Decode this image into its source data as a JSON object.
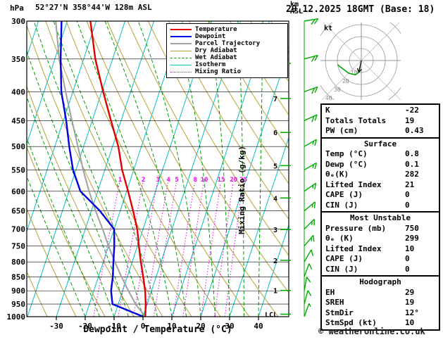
{
  "header": {
    "station": "52°27'N 358°44'W 128m ASL",
    "datetime": "29.12.2025 18GMT (Base: 18)"
  },
  "labels": {
    "hpa": "hPa",
    "km": "km",
    "asl": "ASL",
    "x_axis": "Dewpoint / Temperature (°C)",
    "mixing_ratio_axis": "Mixing Ratio (g/kg)",
    "lcl": "LCL"
  },
  "axes": {
    "pressure_ticks": [
      300,
      350,
      400,
      450,
      500,
      550,
      600,
      650,
      700,
      750,
      800,
      850,
      900,
      950,
      1000
    ],
    "temp_ticks": [
      -30,
      -20,
      -10,
      0,
      10,
      20,
      30,
      40
    ],
    "km_ticks": [
      1,
      2,
      3,
      4,
      5,
      6,
      7,
      8
    ],
    "km_tick_pressures": [
      898.7,
      795.0,
      701.2,
      616.6,
      540.5,
      472.2,
      411.1,
      356.5
    ],
    "mixing_ratio_values": [
      1,
      2,
      3,
      4,
      5,
      8,
      10,
      15,
      20,
      25
    ]
  },
  "colors": {
    "temperature": "#e00000",
    "dewpoint": "#0000e0",
    "parcel": "#a0a0a0",
    "dry_adiabat": "#b8a139",
    "wet_adiabat": "#00a000",
    "isotherm": "#00c0c0",
    "mixing_ratio": "#f000f0",
    "wind_barbs": "#00a800",
    "km_ticks": "#00a800"
  },
  "legend": [
    {
      "label": "Temperature",
      "color_key": "temperature",
      "style": "solid",
      "thick": true
    },
    {
      "label": "Dewpoint",
      "color_key": "dewpoint",
      "style": "solid",
      "thick": true
    },
    {
      "label": "Parcel Trajectory",
      "color_key": "parcel",
      "style": "solid",
      "thick": true
    },
    {
      "label": "Dry Adiabat",
      "color_key": "dry_adiabat",
      "style": "solid",
      "thick": false
    },
    {
      "label": "Wet Adiabat",
      "color_key": "wet_adiabat",
      "style": "dashed",
      "thick": false
    },
    {
      "label": "Isotherm",
      "color_key": "isotherm",
      "style": "solid",
      "thick": false
    },
    {
      "label": "Mixing Ratio",
      "color_key": "mixing_ratio",
      "style": "dotted",
      "thick": false
    }
  ],
  "chart_data": {
    "type": "skewt-log-p",
    "pressure_axis": {
      "min": 300,
      "max": 1000,
      "scale": "log",
      "unit": "hPa"
    },
    "temp_axis": {
      "min": -30,
      "max": 40,
      "unit": "°C"
    },
    "background": {
      "isotherm_C": {
        "min": -80,
        "max": 40,
        "step": 10
      },
      "dry_adiabat_K": {
        "min": 240,
        "max": 420,
        "step": 10
      },
      "wet_adiabat_C": {
        "min": -20,
        "max": 40,
        "step": 5
      },
      "mixing_ratio_top_hpa": 580
    },
    "sounding": {
      "pressure_hpa": [
        1000,
        950,
        900,
        850,
        800,
        750,
        700,
        650,
        600,
        550,
        500,
        450,
        400,
        350,
        300
      ],
      "temperature_c": [
        0.8,
        -0.5,
        -2.2,
        -4.5,
        -7,
        -9.5,
        -12,
        -15.5,
        -19.5,
        -24,
        -28,
        -33.5,
        -39.5,
        -46,
        -52
      ],
      "dewpoint_c": [
        0.1,
        -12,
        -14,
        -15,
        -16.5,
        -18,
        -20,
        -27,
        -36,
        -41,
        -45,
        -49,
        -54,
        -58,
        -62
      ],
      "parcel_c": [
        0.8,
        -4,
        -8,
        -12,
        -16,
        -20,
        -24,
        -28.5,
        -33,
        -37.5,
        -42,
        -47,
        -52.5,
        -58.5,
        -64
      ]
    },
    "lcl_pressure_hpa": 990,
    "wind_barbs": [
      {
        "pressure_hpa": 1000,
        "dir_deg": 20,
        "speed_kt": 5
      },
      {
        "pressure_hpa": 950,
        "dir_deg": 15,
        "speed_kt": 10
      },
      {
        "pressure_hpa": 900,
        "dir_deg": 10,
        "speed_kt": 10
      },
      {
        "pressure_hpa": 850,
        "dir_deg": 20,
        "speed_kt": 10
      },
      {
        "pressure_hpa": 800,
        "dir_deg": 30,
        "speed_kt": 10
      },
      {
        "pressure_hpa": 750,
        "dir_deg": 40,
        "speed_kt": 15
      },
      {
        "pressure_hpa": 700,
        "dir_deg": 45,
        "speed_kt": 15
      },
      {
        "pressure_hpa": 650,
        "dir_deg": 50,
        "speed_kt": 15
      },
      {
        "pressure_hpa": 600,
        "dir_deg": 55,
        "speed_kt": 15
      },
      {
        "pressure_hpa": 550,
        "dir_deg": 60,
        "speed_kt": 15
      },
      {
        "pressure_hpa": 500,
        "dir_deg": 60,
        "speed_kt": 15
      },
      {
        "pressure_hpa": 450,
        "dir_deg": 65,
        "speed_kt": 20
      },
      {
        "pressure_hpa": 400,
        "dir_deg": 70,
        "speed_kt": 20
      },
      {
        "pressure_hpa": 350,
        "dir_deg": 75,
        "speed_kt": 20
      },
      {
        "pressure_hpa": 300,
        "dir_deg": 80,
        "speed_kt": 20
      }
    ]
  },
  "hodograph": {
    "unit_label": "kt",
    "ring_step_kt": 10,
    "ring_labels": [
      10,
      20,
      30,
      40
    ],
    "trace_uv_kt": [
      [
        -0.9,
        -4.9
      ],
      [
        -2,
        -9.8
      ],
      [
        -5,
        -12
      ],
      [
        -10.6,
        -10.6
      ],
      [
        -14,
        -8
      ],
      [
        -18,
        -5
      ],
      [
        -19.7,
        -3.5
      ]
    ],
    "storm_motion_uv_kt": [
      -2.1,
      -9.8
    ]
  },
  "table": {
    "sections": [
      {
        "rows": [
          [
            "K",
            "-22"
          ],
          [
            "Totals Totals",
            "19"
          ],
          [
            "PW (cm)",
            "0.43"
          ]
        ]
      },
      {
        "title": "Surface",
        "rows": [
          [
            "Temp (°C)",
            "0.8"
          ],
          [
            "Dewp (°C)",
            "0.1"
          ],
          [
            "θₑ(K)",
            "282"
          ],
          [
            "Lifted Index",
            "21"
          ],
          [
            "CAPE (J)",
            "0"
          ],
          [
            "CIN (J)",
            "0"
          ]
        ]
      },
      {
        "title": "Most Unstable",
        "rows": [
          [
            "Pressure (mb)",
            "750"
          ],
          [
            "θₑ (K)",
            "299"
          ],
          [
            "Lifted Index",
            "10"
          ],
          [
            "CAPE (J)",
            "0"
          ],
          [
            "CIN (J)",
            "0"
          ]
        ]
      },
      {
        "title": "Hodograph",
        "rows": [
          [
            "EH",
            "29"
          ],
          [
            "SREH",
            "19"
          ],
          [
            "StmDir",
            "12°"
          ],
          [
            "StmSpd (kt)",
            "10"
          ]
        ]
      }
    ]
  },
  "footer": {
    "copyright": "© weatheronline.co.uk"
  }
}
